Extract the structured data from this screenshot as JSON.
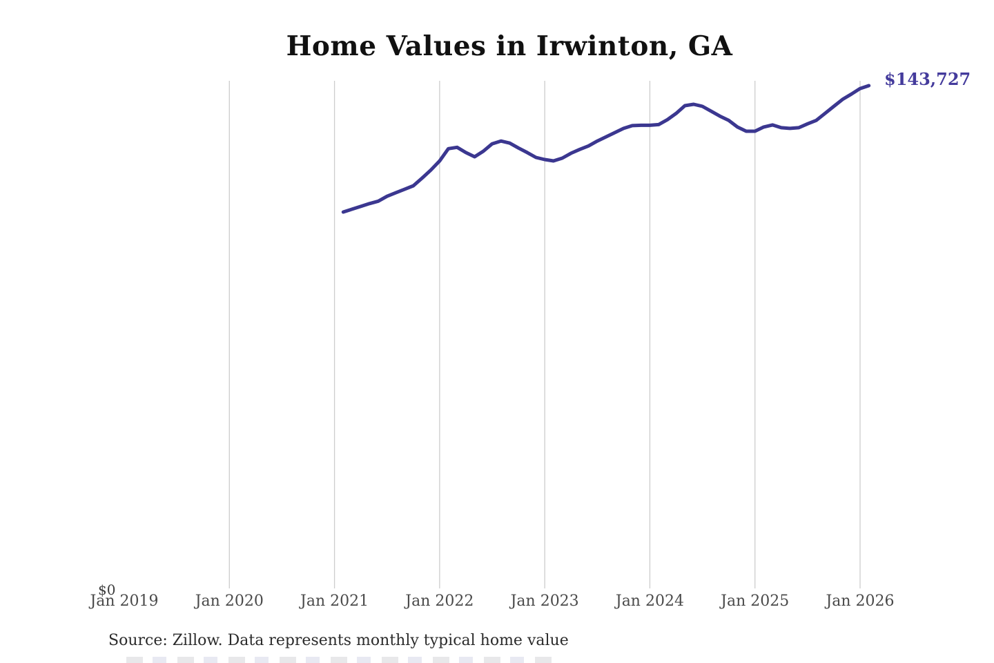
{
  "title": "Home Values in Irwinton, GA",
  "end_label": "$143,727",
  "y_zero_label": "$0",
  "source_note": "Source: Zillow. Data represents monthly typical home value",
  "colors": {
    "line": "#3b3790",
    "end_label": "#443b9c",
    "gridline": "#cccccc",
    "axis_text": "#4a4a4a",
    "title_text": "#111111",
    "source_text": "#2b2b2b"
  },
  "x_axis": {
    "tick_labels": [
      "Jan 2019",
      "Jan 2020",
      "Jan 2021",
      "Jan 2022",
      "Jan 2023",
      "Jan 2024",
      "Jan 2025",
      "Jan 2026"
    ],
    "tick_years": [
      2019,
      2020,
      2021,
      2022,
      2023,
      2024,
      2025,
      2026
    ],
    "gridline_years": [
      2020,
      2021,
      2022,
      2023,
      2024,
      2025,
      2026
    ]
  },
  "chart_data": {
    "type": "line",
    "title": "Home Values in Irwinton, GA",
    "xlabel": "",
    "ylabel": "",
    "ylim": [
      0,
      145000
    ],
    "grid": "vertical-only",
    "legend": "none",
    "series_name": "Monthly typical home value",
    "end_value": 143727,
    "x": [
      "2021-02",
      "2021-03",
      "2021-04",
      "2021-05",
      "2021-06",
      "2021-07",
      "2021-08",
      "2021-09",
      "2021-10",
      "2021-11",
      "2021-12",
      "2022-01",
      "2022-02",
      "2022-03",
      "2022-04",
      "2022-05",
      "2022-06",
      "2022-07",
      "2022-08",
      "2022-09",
      "2022-10",
      "2022-11",
      "2022-12",
      "2023-01",
      "2023-02",
      "2023-03",
      "2023-04",
      "2023-05",
      "2023-06",
      "2023-07",
      "2023-08",
      "2023-09",
      "2023-10",
      "2023-11",
      "2023-12",
      "2024-01",
      "2024-02",
      "2024-03",
      "2024-04",
      "2024-05",
      "2024-06",
      "2024-07",
      "2024-08",
      "2024-09",
      "2024-10",
      "2024-11",
      "2024-12",
      "2025-01",
      "2025-02",
      "2025-03",
      "2025-04",
      "2025-05",
      "2025-06",
      "2025-07",
      "2025-08",
      "2025-09",
      "2025-10",
      "2025-11",
      "2025-12",
      "2026-01",
      "2026-02"
    ],
    "values": [
      107600,
      108400,
      109200,
      110000,
      110700,
      112100,
      113100,
      114100,
      115100,
      117300,
      119600,
      122200,
      125700,
      126100,
      124600,
      123400,
      125000,
      127100,
      127900,
      127300,
      125900,
      124600,
      123200,
      122600,
      122200,
      123000,
      124400,
      125500,
      126500,
      127900,
      129100,
      130300,
      131500,
      132300,
      132400,
      132400,
      132600,
      134000,
      135800,
      138000,
      138400,
      137800,
      136400,
      135000,
      133800,
      131900,
      130700,
      130700,
      131900,
      132500,
      131700,
      131500,
      131700,
      132800,
      133800,
      135800,
      137800,
      139800,
      141300,
      142900,
      143727
    ]
  }
}
